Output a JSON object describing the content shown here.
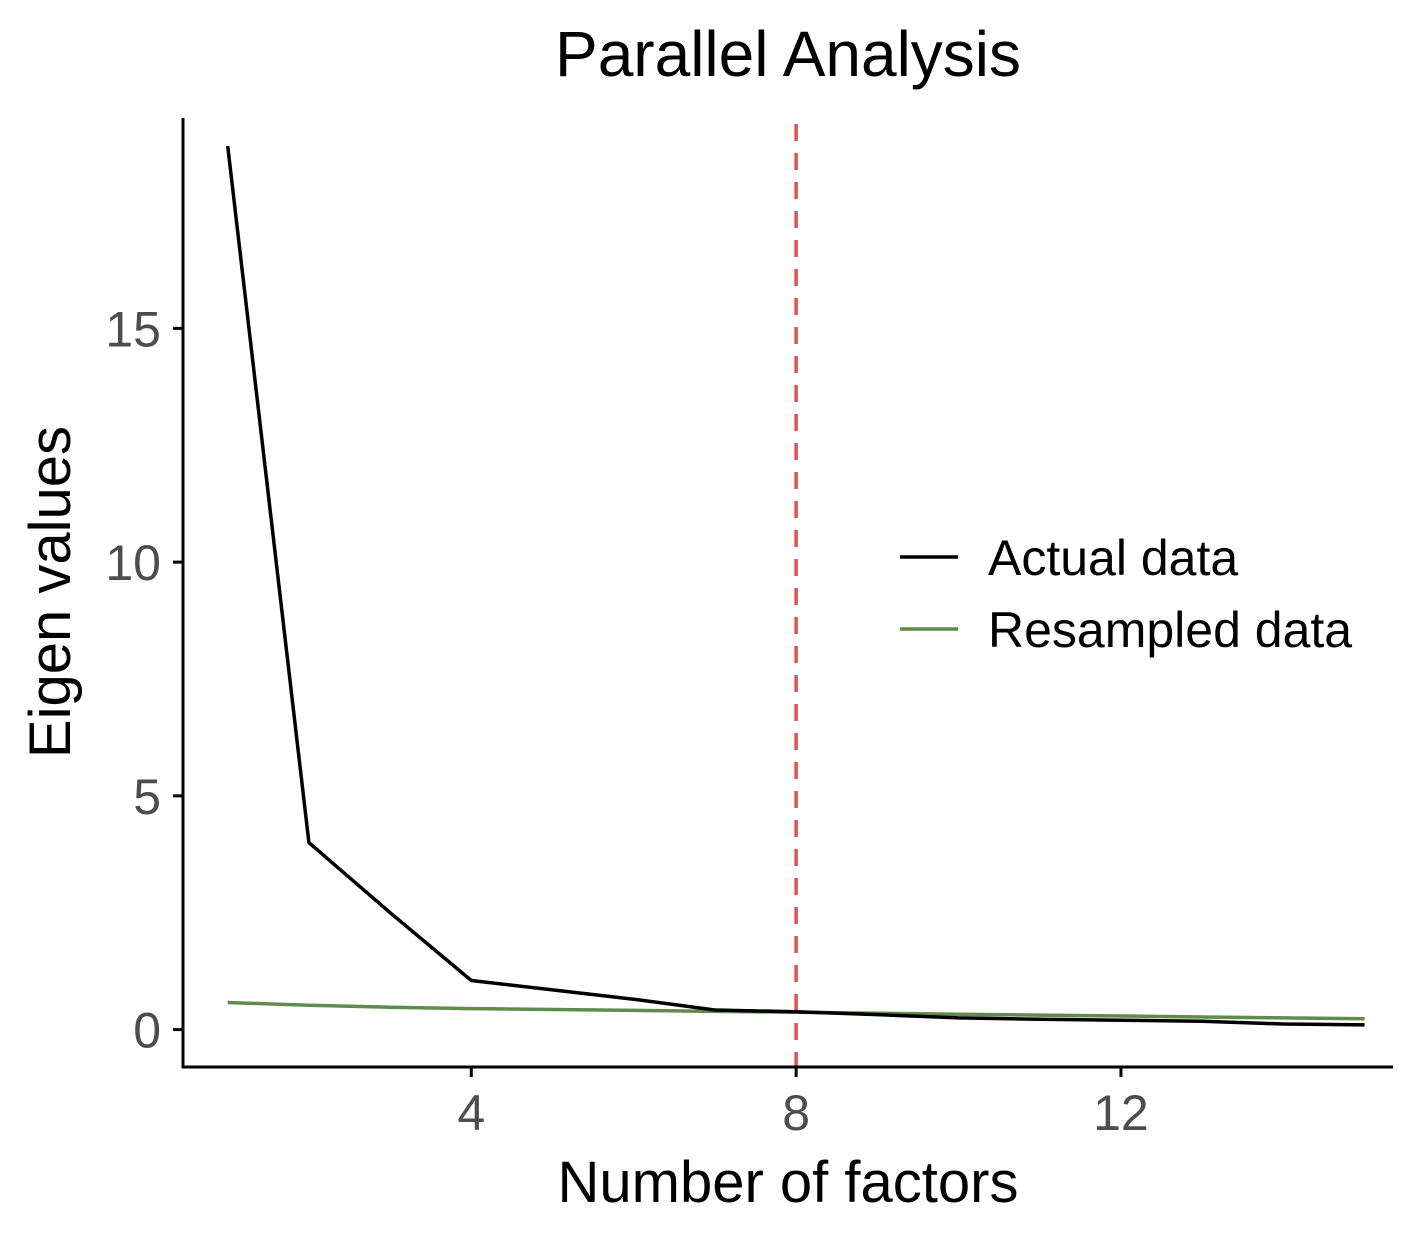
{
  "chart_data": {
    "type": "line",
    "title": "Parallel Analysis",
    "xlabel": "Number of factors",
    "ylabel": "Eigen values",
    "xlim": [
      0.45,
      15.35
    ],
    "ylim": [
      -0.8,
      19.5
    ],
    "x_ticks": [
      4,
      8,
      12
    ],
    "y_ticks": [
      0,
      5,
      10,
      15
    ],
    "grid": false,
    "legend_position": "right",
    "vline": {
      "x": 8,
      "style": "dashed",
      "color": "#d9534f"
    },
    "x": [
      1,
      2,
      3,
      4,
      5,
      6,
      7,
      8,
      9,
      10,
      11,
      12,
      13,
      14,
      15
    ],
    "series": [
      {
        "name": "Actual data",
        "color": "#000000",
        "values": [
          18.9,
          4.0,
          2.5,
          1.05,
          0.85,
          0.65,
          0.42,
          0.38,
          0.32,
          0.25,
          0.22,
          0.2,
          0.18,
          0.12,
          0.1
        ]
      },
      {
        "name": "Resampled data",
        "color": "#5f8b4c",
        "values": [
          0.58,
          0.52,
          0.48,
          0.45,
          0.43,
          0.41,
          0.39,
          0.37,
          0.35,
          0.33,
          0.31,
          0.29,
          0.27,
          0.25,
          0.23
        ]
      }
    ]
  }
}
